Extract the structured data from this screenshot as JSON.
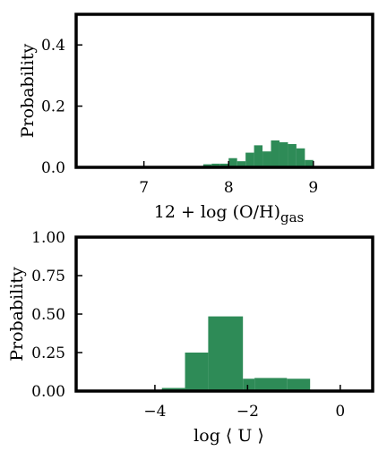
{
  "chart_data": [
    {
      "type": "bar",
      "xlabel": "12 + log (O/H)",
      "xlabel_sub": "gas",
      "ylabel": "Probability",
      "xlim": [
        6.2,
        9.7
      ],
      "ylim": [
        0.0,
        0.5
      ],
      "xticks": [
        7,
        8,
        9
      ],
      "yticks": [
        0.0,
        0.2,
        0.4
      ],
      "ytick_labels": [
        "0.0",
        "0.2",
        "0.4"
      ],
      "bar_color": "#2e8b57",
      "bin_edges": [
        6.2,
        6.3,
        6.4,
        6.5,
        6.6,
        6.7,
        6.8,
        6.9,
        7.0,
        7.1,
        7.2,
        7.3,
        7.4,
        7.5,
        7.6,
        7.7,
        7.8,
        7.9,
        8.0,
        8.1,
        8.2,
        8.3,
        8.4,
        8.5,
        8.6,
        8.7,
        8.8,
        8.9,
        9.0,
        9.1
      ],
      "values": [
        0,
        0,
        0,
        0,
        0,
        0,
        0,
        0,
        0,
        0,
        0,
        0,
        0,
        0,
        0.004,
        0.01,
        0.012,
        0.012,
        0.03,
        0.02,
        0.048,
        0.072,
        0.052,
        0.088,
        0.082,
        0.076,
        0.062,
        0.024,
        0.003
      ]
    },
    {
      "type": "bar",
      "xlabel": "log ⟨ U ⟩",
      "ylabel": "Probability",
      "xlim": [
        -5.7,
        0.7
      ],
      "ylim": [
        0.0,
        1.0
      ],
      "xticks": [
        -4,
        -2,
        0
      ],
      "xtick_labels": [
        "−4",
        "−2",
        "0"
      ],
      "yticks": [
        0.0,
        0.25,
        0.5,
        0.75,
        1.0
      ],
      "ytick_labels": [
        "0.00",
        "0.25",
        "0.50",
        "0.75",
        "1.00"
      ],
      "bar_color": "#2e8b57",
      "bin_edges": [
        -4.65,
        -4.35,
        -4.05,
        -3.85,
        -3.35,
        -2.85,
        -2.1,
        -1.85,
        -1.15,
        -0.65,
        0.0
      ],
      "values": [
        0.0,
        0.003,
        0.005,
        0.02,
        0.25,
        0.485,
        0.08,
        0.085,
        0.08,
        0.005
      ]
    }
  ]
}
